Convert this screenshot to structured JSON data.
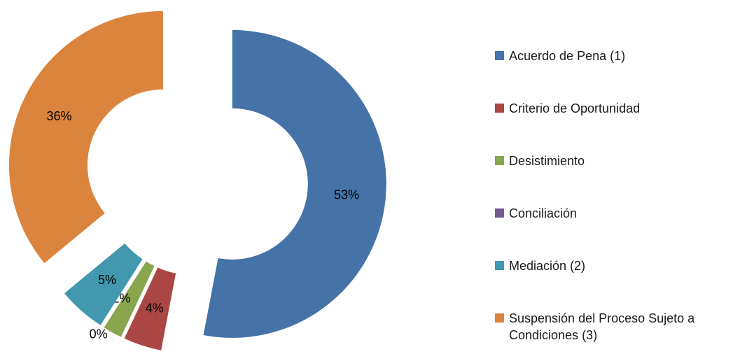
{
  "chart_data": {
    "type": "pie",
    "variant": "exploded-donut",
    "categories": [
      "Acuerdo de Pena (1)",
      "Criterio de Oportunidad",
      "Desistimiento",
      "Conciliación",
      "Mediación (2)",
      "Suspensión del Proceso Sujeto a Condiciones (3)"
    ],
    "values": [
      53,
      4,
      2,
      0,
      5,
      36
    ],
    "data_labels": [
      "53%",
      "4%",
      "2%",
      "0%",
      "5%",
      "36%"
    ],
    "colors": [
      "#4572A7",
      "#AA4643",
      "#89A54E",
      "#71588F",
      "#4198AF",
      "#DB843D"
    ],
    "legend_placement": "right",
    "title": "",
    "xlabel": "",
    "ylabel": ""
  }
}
